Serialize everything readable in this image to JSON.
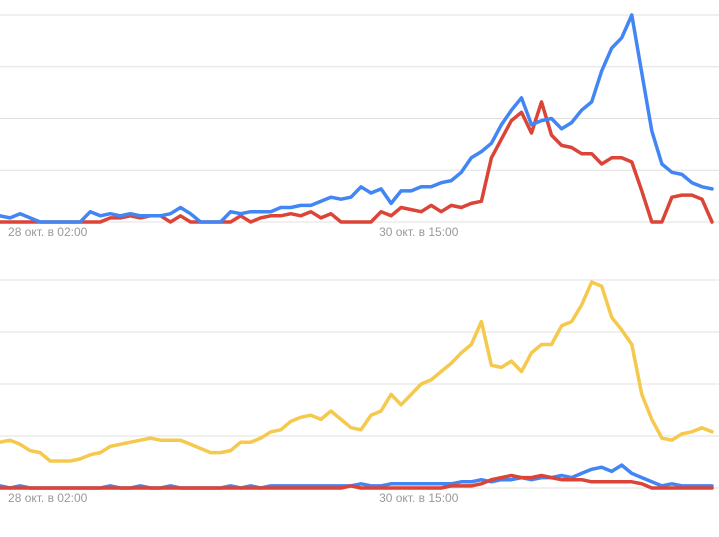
{
  "chart_data": [
    {
      "type": "line",
      "categories": [
        null,
        "28 окт. в 02:00",
        null,
        null,
        null,
        null,
        null,
        null,
        null,
        null,
        null,
        null,
        null,
        null,
        null,
        null,
        null,
        null,
        null,
        null,
        null,
        null,
        null,
        null,
        null,
        null,
        null,
        null,
        null,
        null,
        null,
        null,
        null,
        null,
        null,
        null,
        null,
        null,
        "30 окт. в 15:00",
        null,
        null,
        null,
        null,
        null,
        null,
        null,
        null,
        null,
        null,
        null,
        null,
        null,
        null,
        null,
        null,
        null,
        null,
        null,
        null,
        null,
        null,
        null,
        null,
        null,
        null,
        null,
        null,
        null,
        null,
        null,
        null,
        null
      ],
      "series": [
        {
          "color": "#db4437",
          "values": [
            0,
            0,
            0,
            0,
            0,
            0,
            0,
            0,
            0,
            0,
            0,
            2,
            2,
            3,
            2,
            3,
            3,
            0,
            3,
            0,
            0,
            0,
            0,
            0,
            3,
            0,
            2,
            3,
            3,
            4,
            3,
            5,
            2,
            4,
            0,
            0,
            0,
            0,
            5,
            3,
            7,
            6,
            5,
            8,
            5,
            8,
            7,
            9,
            10,
            31,
            40,
            49,
            53,
            43,
            58,
            42,
            37,
            36,
            33,
            33,
            28,
            31,
            31,
            29,
            15,
            0,
            0,
            12,
            13,
            13,
            11,
            0
          ]
        },
        {
          "color": "#4285f4",
          "values": [
            3,
            2,
            4,
            2,
            0,
            0,
            0,
            0,
            0,
            5,
            3,
            4,
            3,
            4,
            3,
            3,
            3,
            4,
            7,
            4,
            0,
            0,
            0,
            5,
            4,
            5,
            5,
            5,
            7,
            7,
            8,
            8,
            10,
            12,
            11,
            12,
            17,
            14,
            16,
            9,
            15,
            15,
            17,
            17,
            19,
            20,
            24,
            31,
            34,
            38,
            47,
            54,
            60,
            47,
            49,
            50,
            45,
            48,
            54,
            58,
            73,
            84,
            89,
            100,
            72,
            44,
            28,
            24,
            23,
            19,
            17,
            16
          ]
        }
      ],
      "ylim": [
        0,
        100
      ],
      "yticks": [
        0,
        25,
        50,
        75,
        100
      ],
      "grid": true
    },
    {
      "type": "line",
      "categories": [
        null,
        "28 окт. в 02:00",
        null,
        null,
        null,
        null,
        null,
        null,
        null,
        null,
        null,
        null,
        null,
        null,
        null,
        null,
        null,
        null,
        null,
        null,
        null,
        null,
        null,
        null,
        null,
        null,
        null,
        null,
        null,
        null,
        null,
        null,
        null,
        null,
        null,
        null,
        null,
        null,
        "30 окт. в 15:00",
        null,
        null,
        null,
        null,
        null,
        null,
        null,
        null,
        null,
        null,
        null,
        null,
        null,
        null,
        null,
        null,
        null,
        null,
        null,
        null,
        null,
        null,
        null,
        null,
        null,
        null,
        null,
        null,
        null,
        null,
        null,
        null,
        null
      ],
      "series": [
        {
          "color": "#f5c94e",
          "values": [
            22,
            23,
            21,
            18,
            17,
            13,
            13,
            13,
            14,
            16,
            17,
            20,
            21,
            22,
            23,
            24,
            23,
            23,
            23,
            21,
            19,
            17,
            17,
            18,
            22,
            22,
            24,
            27,
            28,
            32,
            34,
            35,
            33,
            37,
            33,
            29,
            28,
            35,
            37,
            45,
            40,
            45,
            50,
            52,
            56,
            60,
            65,
            69,
            80,
            59,
            58,
            61,
            56,
            65,
            69,
            69,
            78,
            80,
            88,
            99,
            97,
            82,
            76,
            69,
            45,
            33,
            24,
            23,
            26,
            27,
            29,
            27
          ]
        },
        {
          "color": "#4285f4",
          "values": [
            1,
            0,
            1,
            0,
            0,
            0,
            0,
            0,
            0,
            0,
            0,
            1,
            0,
            0,
            1,
            0,
            0,
            1,
            0,
            0,
            0,
            0,
            0,
            1,
            0,
            1,
            0,
            1,
            1,
            1,
            1,
            1,
            1,
            1,
            1,
            1,
            2,
            1,
            1,
            2,
            2,
            2,
            2,
            2,
            2,
            2,
            3,
            3,
            4,
            3,
            4,
            4,
            5,
            4,
            5,
            5,
            6,
            5,
            7,
            9,
            10,
            8,
            11,
            7,
            5,
            3,
            1,
            2,
            1,
            1,
            1,
            1
          ]
        },
        {
          "color": "#db4437",
          "values": [
            0,
            0,
            0,
            0,
            0,
            0,
            0,
            0,
            0,
            0,
            0,
            0,
            0,
            0,
            0,
            0,
            0,
            0,
            0,
            0,
            0,
            0,
            0,
            0,
            0,
            0,
            0,
            0,
            0,
            0,
            0,
            0,
            0,
            0,
            0,
            1,
            0,
            0,
            0,
            0,
            0,
            0,
            0,
            0,
            0,
            1,
            1,
            1,
            2,
            4,
            5,
            6,
            5,
            5,
            6,
            5,
            4,
            4,
            4,
            3,
            3,
            3,
            3,
            3,
            2,
            0,
            0,
            0,
            0,
            0,
            0,
            0
          ]
        }
      ],
      "ylim": [
        0,
        100
      ],
      "yticks": [
        0,
        25,
        50,
        75,
        100
      ],
      "grid": true
    }
  ]
}
